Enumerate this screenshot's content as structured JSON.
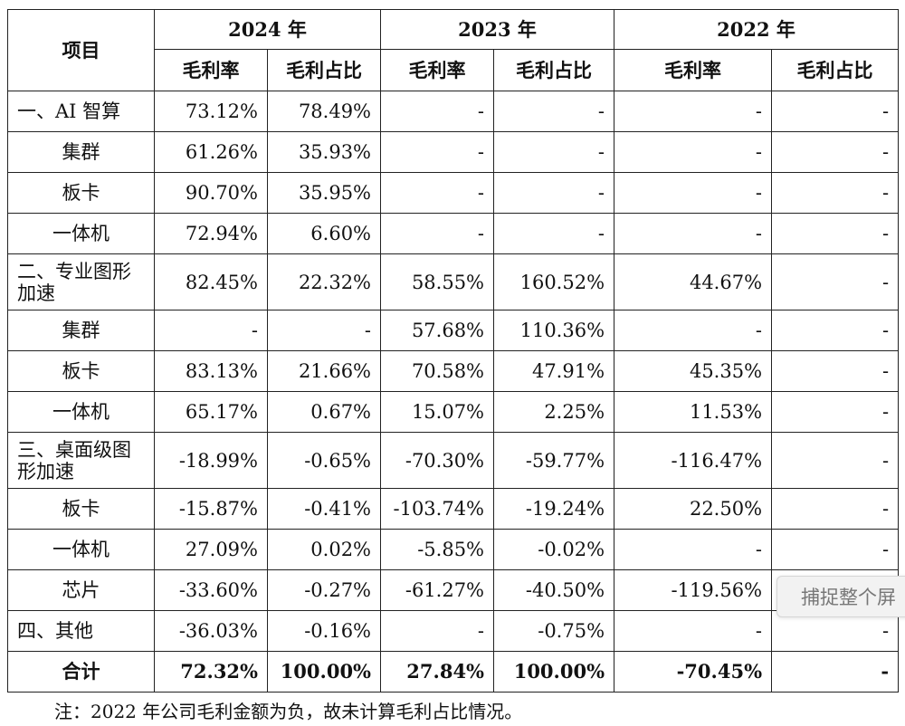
{
  "table": {
    "header": {
      "item": "项目",
      "years": [
        "2024 年",
        "2023 年",
        "2022 年"
      ],
      "metrics": [
        "毛利率",
        "毛利占比",
        "毛利率",
        "毛利占比",
        "毛利率",
        "毛利占比"
      ]
    },
    "rows": [
      {
        "label": "一、AI 智算",
        "cells": [
          "73.12%",
          "78.49%",
          "-",
          "-",
          "-",
          "-"
        ]
      },
      {
        "label": "集群",
        "cells": [
          "61.26%",
          "35.93%",
          "-",
          "-",
          "-",
          "-"
        ]
      },
      {
        "label": "板卡",
        "cells": [
          "90.70%",
          "35.95%",
          "-",
          "-",
          "-",
          "-"
        ]
      },
      {
        "label": "一体机",
        "cells": [
          "72.94%",
          "6.60%",
          "-",
          "-",
          "-",
          "-"
        ]
      },
      {
        "label": "二、专业图形加速",
        "cells": [
          "82.45%",
          "22.32%",
          "58.55%",
          "160.52%",
          "44.67%",
          "-"
        ]
      },
      {
        "label": "集群",
        "cells": [
          "-",
          "-",
          "57.68%",
          "110.36%",
          "-",
          "-"
        ]
      },
      {
        "label": "板卡",
        "cells": [
          "83.13%",
          "21.66%",
          "70.58%",
          "47.91%",
          "45.35%",
          "-"
        ]
      },
      {
        "label": "一体机",
        "cells": [
          "65.17%",
          "0.67%",
          "15.07%",
          "2.25%",
          "11.53%",
          "-"
        ]
      },
      {
        "label": "三、桌面级图形加速",
        "cells": [
          "-18.99%",
          "-0.65%",
          "-70.30%",
          "-59.77%",
          "-116.47%",
          "-"
        ]
      },
      {
        "label": "板卡",
        "cells": [
          "-15.87%",
          "-0.41%",
          "-103.74%",
          "-19.24%",
          "22.50%",
          "-"
        ]
      },
      {
        "label": "一体机",
        "cells": [
          "27.09%",
          "0.02%",
          "-5.85%",
          "-0.02%",
          "-",
          "-"
        ]
      },
      {
        "label": "芯片",
        "cells": [
          "-33.60%",
          "-0.27%",
          "-61.27%",
          "-40.50%",
          "-119.56%",
          "-"
        ]
      },
      {
        "label": "四、其他",
        "cells": [
          "-36.03%",
          "-0.16%",
          "-",
          "-0.75%",
          "-",
          "-"
        ]
      }
    ],
    "total": {
      "label": "合计",
      "cells": [
        "72.32%",
        "100.00%",
        "27.84%",
        "100.00%",
        "-70.45%",
        "-"
      ]
    }
  },
  "note": "注：2022 年公司毛利金额为负，故未计算毛利占比情况。",
  "overlay": {
    "label": "捕捉整个屏"
  }
}
